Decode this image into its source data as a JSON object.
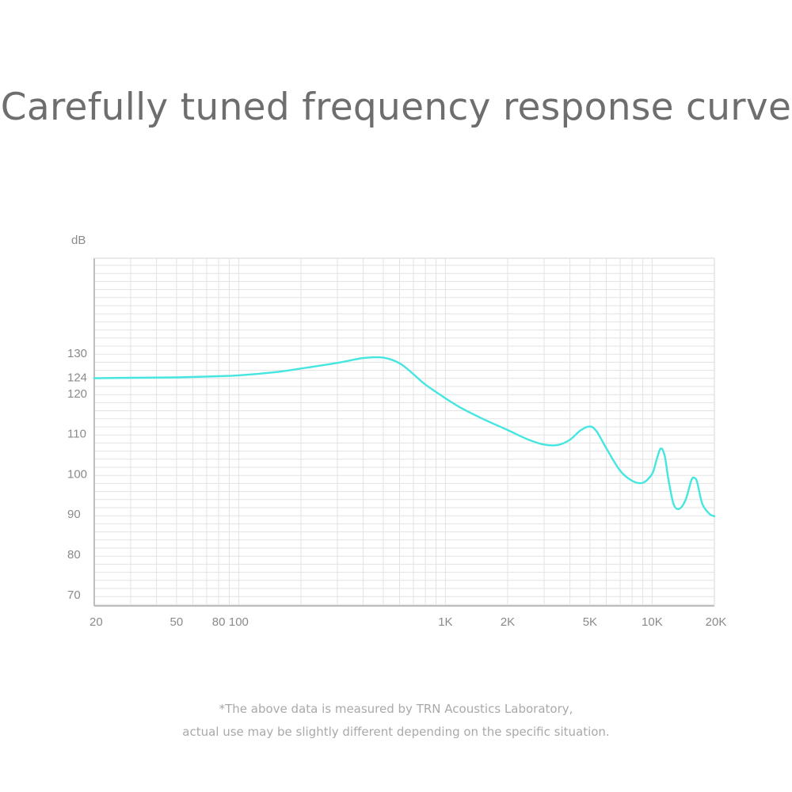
{
  "title": "Carefully tuned frequency response curve",
  "footnote": {
    "line1": "*The above data is measured by TRN Acoustics Laboratory,",
    "line2": "actual use may be slightly different depending on the specific situation."
  },
  "colors": {
    "curve": "#46e6e0",
    "grid": "#e3e3e3",
    "axis": "#bdbdbd",
    "text": "#8a8a8a"
  },
  "chart_data": {
    "type": "line",
    "title": "",
    "xlabel": "",
    "ylabel": "dB",
    "x_scale": "log",
    "xlim": [
      20,
      20000
    ],
    "grid": true,
    "y_ticks": [
      {
        "value": 70,
        "label": "70"
      },
      {
        "value": 80,
        "label": "80"
      },
      {
        "value": 90,
        "label": "90"
      },
      {
        "value": 100,
        "label": "100"
      },
      {
        "value": 110,
        "label": "110"
      },
      {
        "value": 120,
        "label": "120"
      },
      {
        "value": 124,
        "label": "124"
      },
      {
        "value": 130,
        "label": "130"
      }
    ],
    "x_ticks": [
      {
        "value": 20,
        "label": "20"
      },
      {
        "value": 50,
        "label": "50"
      },
      {
        "value": 80,
        "label": "80"
      },
      {
        "value": 100,
        "label": "100"
      },
      {
        "value": 1000,
        "label": "1K"
      },
      {
        "value": 2000,
        "label": "2K"
      },
      {
        "value": 5000,
        "label": "5K"
      },
      {
        "value": 10000,
        "label": "10K"
      },
      {
        "value": 20000,
        "label": "20K"
      }
    ],
    "series": [
      {
        "points": [
          [
            20,
            123.8
          ],
          [
            30,
            123.9
          ],
          [
            50,
            124.0
          ],
          [
            80,
            124.3
          ],
          [
            100,
            124.5
          ],
          [
            150,
            125.3
          ],
          [
            200,
            126.2
          ],
          [
            300,
            127.6
          ],
          [
            400,
            128.8
          ],
          [
            500,
            128.9
          ],
          [
            600,
            127.5
          ],
          [
            700,
            124.8
          ],
          [
            800,
            122.2
          ],
          [
            1000,
            118.8
          ],
          [
            1200,
            116.3
          ],
          [
            1500,
            113.8
          ],
          [
            2000,
            110.9
          ],
          [
            2500,
            108.6
          ],
          [
            3000,
            107.3
          ],
          [
            3500,
            107.2
          ],
          [
            4000,
            108.5
          ],
          [
            4500,
            110.8
          ],
          [
            5000,
            111.8
          ],
          [
            5400,
            110.5
          ],
          [
            6000,
            106.4
          ],
          [
            7000,
            100.8
          ],
          [
            8000,
            98.3
          ],
          [
            9000,
            97.8
          ],
          [
            10000,
            100.0
          ],
          [
            10500,
            103.5
          ],
          [
            11000,
            106.3
          ],
          [
            11500,
            104.5
          ],
          [
            12000,
            98.5
          ],
          [
            12700,
            92.5
          ],
          [
            13500,
            91.3
          ],
          [
            14500,
            93.5
          ],
          [
            15500,
            98.5
          ],
          [
            16000,
            99.0
          ],
          [
            16500,
            98.0
          ],
          [
            17500,
            92.5
          ],
          [
            19000,
            90.0
          ],
          [
            20000,
            89.5
          ]
        ]
      }
    ]
  }
}
